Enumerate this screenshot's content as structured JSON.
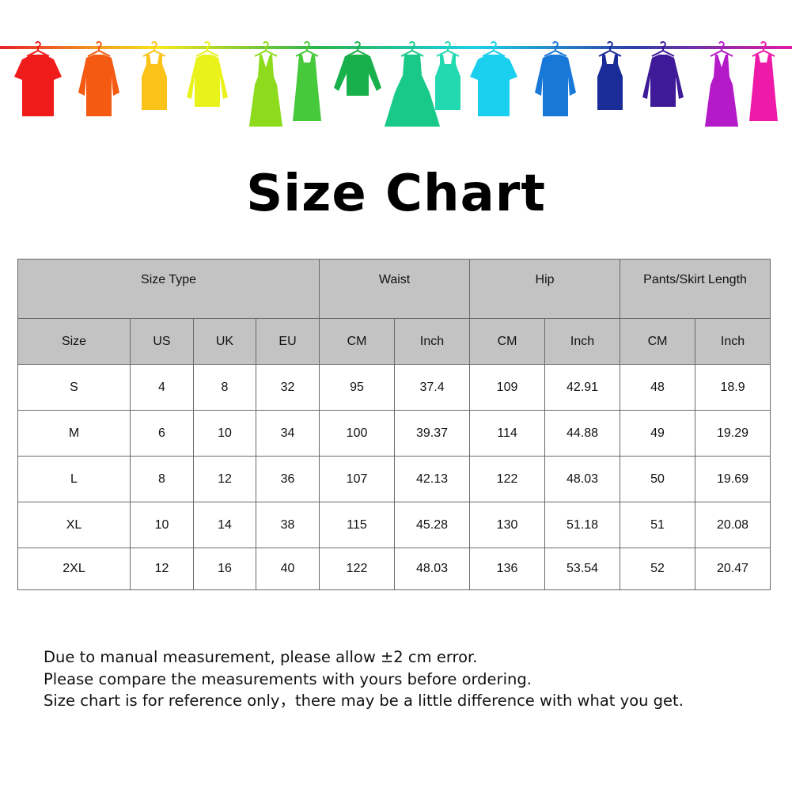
{
  "banner": {
    "rod_colors": [
      "#e8202a",
      "#f7e81a",
      "#2bb54a",
      "#1bd0e8",
      "#2f3fa8",
      "#e01aa8"
    ],
    "garments": [
      {
        "type": "tshirt",
        "color": "#f01c1c"
      },
      {
        "type": "shirt",
        "color": "#f45a12"
      },
      {
        "type": "tank",
        "color": "#fbc31a"
      },
      {
        "type": "cardigan",
        "color": "#e9f21a"
      },
      {
        "type": "dress",
        "color": "#8edb1e"
      },
      {
        "type": "tankdress",
        "color": "#46c93a"
      },
      {
        "type": "sweater",
        "color": "#18b04a"
      },
      {
        "type": "balldress",
        "color": "#19c98a"
      },
      {
        "type": "tank",
        "color": "#22d9b0"
      },
      {
        "type": "tshirt",
        "color": "#1ad0ee"
      },
      {
        "type": "shirt",
        "color": "#1878d8"
      },
      {
        "type": "tank",
        "color": "#1a2c98"
      },
      {
        "type": "cardigan",
        "color": "#3e1a98"
      },
      {
        "type": "dress",
        "color": "#b41ac8"
      },
      {
        "type": "tankdress",
        "color": "#ee1aa8"
      }
    ]
  },
  "title": "Size Chart",
  "table": {
    "group_headers": [
      "Size Type",
      "Waist",
      "Hip",
      "Pants/Skirt Length"
    ],
    "sub_headers": [
      "Size",
      "US",
      "UK",
      "EU",
      "CM",
      "Inch",
      "CM",
      "Inch",
      "CM",
      "Inch"
    ],
    "rows": [
      [
        "S",
        "4",
        "8",
        "32",
        "95",
        "37.4",
        "109",
        "42.91",
        "48",
        "18.9"
      ],
      [
        "M",
        "6",
        "10",
        "34",
        "100",
        "39.37",
        "114",
        "44.88",
        "49",
        "19.29"
      ],
      [
        "L",
        "8",
        "12",
        "36",
        "107",
        "42.13",
        "122",
        "48.03",
        "50",
        "19.69"
      ],
      [
        "XL",
        "10",
        "14",
        "38",
        "115",
        "45.28",
        "130",
        "51.18",
        "51",
        "20.08"
      ],
      [
        "2XL",
        "12",
        "16",
        "40",
        "122",
        "48.03",
        "136",
        "53.54",
        "52",
        "20.47"
      ]
    ]
  },
  "notes": [
    "Due to manual measurement, please allow ±2 cm error.",
    "Please compare the measurements with yours before ordering.",
    "Size chart is for reference only，there may be a little difference with what you get."
  ]
}
